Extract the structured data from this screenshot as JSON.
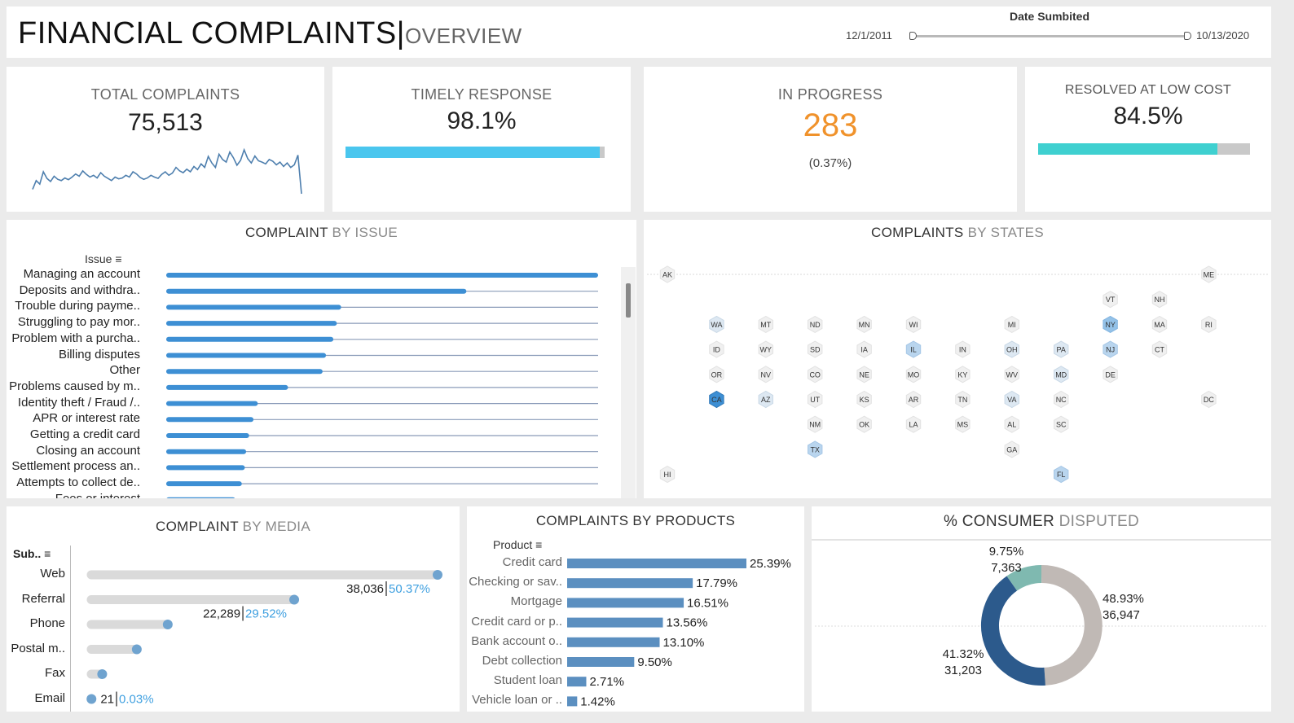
{
  "header": {
    "title": "FINANCIAL COMPLAINTS",
    "subtitle": "OVERVIEW",
    "date_filter": {
      "label": "Date Sumbited",
      "start": "12/1/2011",
      "end": "10/13/2020"
    }
  },
  "kpis": {
    "total": {
      "label": "TOTAL COMPLAINTS",
      "value": "75,513"
    },
    "timely": {
      "label": "TIMELY RESPONSE",
      "value": "98.1%",
      "fraction": 0.981
    },
    "in_progress": {
      "label": "IN PROGRESS",
      "value": "283",
      "sub": "(0.37%)"
    },
    "low_cost": {
      "label": "RESOLVED AT LOW COST",
      "value": "84.5%",
      "fraction": 0.845
    }
  },
  "colors": {
    "accent_blue": "#4ac6ee",
    "accent_teal": "#3fd0d0",
    "orange": "#f0922b",
    "bar_blue": "#3d8fd4",
    "product_blue": "#5b8fc0",
    "donut_dark": "#2c5a8c",
    "donut_teal": "#7fb9b0",
    "donut_grey": "#c0b9b5"
  },
  "issue_chart": {
    "title_dark": "COMPLAINT",
    "title_light": " BY ISSUE",
    "header": "Issue",
    "items": [
      {
        "label": "Managing an account",
        "value": 1.0
      },
      {
        "label": "Deposits and withdra..",
        "value": 0.695
      },
      {
        "label": "Trouble during payme..",
        "value": 0.405
      },
      {
        "label": "Struggling to pay mor..",
        "value": 0.395
      },
      {
        "label": "Problem with a purcha..",
        "value": 0.387
      },
      {
        "label": "Billing disputes",
        "value": 0.37
      },
      {
        "label": "Other",
        "value": 0.362
      },
      {
        "label": "Problems caused by m..",
        "value": 0.282
      },
      {
        "label": "Identity theft / Fraud /..",
        "value": 0.212
      },
      {
        "label": "APR or interest rate",
        "value": 0.202
      },
      {
        "label": "Getting a credit card",
        "value": 0.192
      },
      {
        "label": "Closing an account",
        "value": 0.185
      },
      {
        "label": "Settlement process an..",
        "value": 0.182
      },
      {
        "label": "Attempts to collect de..",
        "value": 0.175
      },
      {
        "label": "Fees or interest",
        "value": 0.16
      }
    ]
  },
  "states_map": {
    "title_dark": "COMPLAINTS",
    "title_light": " BY STATES",
    "states": [
      {
        "code": "AK",
        "col": 0,
        "row": 0,
        "level": 0
      },
      {
        "code": "ME",
        "col": 11,
        "row": 0,
        "level": 0
      },
      {
        "code": "VT",
        "col": 9,
        "row": 1,
        "level": 0
      },
      {
        "code": "NH",
        "col": 10,
        "row": 1,
        "level": 0
      },
      {
        "code": "WA",
        "col": 1,
        "row": 2,
        "level": 1
      },
      {
        "code": "MT",
        "col": 2,
        "row": 2,
        "level": 0
      },
      {
        "code": "ND",
        "col": 3,
        "row": 2,
        "level": 0
      },
      {
        "code": "MN",
        "col": 4,
        "row": 2,
        "level": 0
      },
      {
        "code": "WI",
        "col": 5,
        "row": 2,
        "level": 0
      },
      {
        "code": "MI",
        "col": 7,
        "row": 2,
        "level": 0
      },
      {
        "code": "NY",
        "col": 9,
        "row": 2,
        "level": 3
      },
      {
        "code": "MA",
        "col": 10,
        "row": 2,
        "level": 0
      },
      {
        "code": "RI",
        "col": 11,
        "row": 2,
        "level": 0
      },
      {
        "code": "ID",
        "col": 1,
        "row": 3,
        "level": 0
      },
      {
        "code": "WY",
        "col": 2,
        "row": 3,
        "level": 0
      },
      {
        "code": "SD",
        "col": 3,
        "row": 3,
        "level": 0
      },
      {
        "code": "IA",
        "col": 4,
        "row": 3,
        "level": 0
      },
      {
        "code": "IL",
        "col": 5,
        "row": 3,
        "level": 2
      },
      {
        "code": "IN",
        "col": 6,
        "row": 3,
        "level": 0
      },
      {
        "code": "OH",
        "col": 7,
        "row": 3,
        "level": 1
      },
      {
        "code": "PA",
        "col": 8,
        "row": 3,
        "level": 1
      },
      {
        "code": "NJ",
        "col": 9,
        "row": 3,
        "level": 2
      },
      {
        "code": "CT",
        "col": 10,
        "row": 3,
        "level": 0
      },
      {
        "code": "OR",
        "col": 1,
        "row": 4,
        "level": 0
      },
      {
        "code": "NV",
        "col": 2,
        "row": 4,
        "level": 0
      },
      {
        "code": "CO",
        "col": 3,
        "row": 4,
        "level": 0
      },
      {
        "code": "NE",
        "col": 4,
        "row": 4,
        "level": 0
      },
      {
        "code": "MO",
        "col": 5,
        "row": 4,
        "level": 0
      },
      {
        "code": "KY",
        "col": 6,
        "row": 4,
        "level": 0
      },
      {
        "code": "WV",
        "col": 7,
        "row": 4,
        "level": 0
      },
      {
        "code": "MD",
        "col": 8,
        "row": 4,
        "level": 1
      },
      {
        "code": "DE",
        "col": 9,
        "row": 4,
        "level": 0
      },
      {
        "code": "CA",
        "col": 1,
        "row": 5,
        "level": 4
      },
      {
        "code": "AZ",
        "col": 2,
        "row": 5,
        "level": 1
      },
      {
        "code": "UT",
        "col": 3,
        "row": 5,
        "level": 0
      },
      {
        "code": "KS",
        "col": 4,
        "row": 5,
        "level": 0
      },
      {
        "code": "AR",
        "col": 5,
        "row": 5,
        "level": 0
      },
      {
        "code": "TN",
        "col": 6,
        "row": 5,
        "level": 0
      },
      {
        "code": "VA",
        "col": 7,
        "row": 5,
        "level": 1
      },
      {
        "code": "NC",
        "col": 8,
        "row": 5,
        "level": 0
      },
      {
        "code": "DC",
        "col": 11,
        "row": 5,
        "level": 0
      },
      {
        "code": "NM",
        "col": 3,
        "row": 6,
        "level": 0
      },
      {
        "code": "OK",
        "col": 4,
        "row": 6,
        "level": 0
      },
      {
        "code": "LA",
        "col": 5,
        "row": 6,
        "level": 0
      },
      {
        "code": "MS",
        "col": 6,
        "row": 6,
        "level": 0
      },
      {
        "code": "AL",
        "col": 7,
        "row": 6,
        "level": 0
      },
      {
        "code": "SC",
        "col": 8,
        "row": 6,
        "level": 0
      },
      {
        "code": "TX",
        "col": 3,
        "row": 7,
        "level": 2
      },
      {
        "code": "GA",
        "col": 7,
        "row": 7,
        "level": 0
      },
      {
        "code": "HI",
        "col": 0,
        "row": 8,
        "level": 0
      },
      {
        "code": "FL",
        "col": 8,
        "row": 8,
        "level": 2
      }
    ]
  },
  "media_chart": {
    "title_dark": "COMPLAINT",
    "title_light": " BY MEDIA",
    "header": "Sub..",
    "items": [
      {
        "label": "Web",
        "value": 38036,
        "count": "38,036",
        "pct": "50.37%"
      },
      {
        "label": "Referral",
        "value": 22289,
        "count": "22,289",
        "pct": "29.52%"
      },
      {
        "label": "Phone",
        "value": 8400,
        "count": "",
        "pct": ""
      },
      {
        "label": "Postal m..",
        "value": 5000,
        "count": "",
        "pct": ""
      },
      {
        "label": "Fax",
        "value": 1200,
        "count": "",
        "pct": ""
      },
      {
        "label": "Email",
        "value": 21,
        "count": "21",
        "pct": "0.03%"
      }
    ]
  },
  "products_chart": {
    "title": "COMPLAINTS BY PRODUCTS",
    "header": "Product",
    "items": [
      {
        "label": "Credit card",
        "value": 25.39,
        "text": "25.39%"
      },
      {
        "label": "Checking or sav..",
        "value": 17.79,
        "text": "17.79%"
      },
      {
        "label": "Mortgage",
        "value": 16.51,
        "text": "16.51%"
      },
      {
        "label": "Credit card or p..",
        "value": 13.56,
        "text": "13.56%"
      },
      {
        "label": "Bank account o..",
        "value": 13.1,
        "text": "13.10%"
      },
      {
        "label": "Debt collection",
        "value": 9.5,
        "text": "9.50%"
      },
      {
        "label": "Student loan",
        "value": 2.71,
        "text": "2.71%"
      },
      {
        "label": "Vehicle loan or ..",
        "value": 1.42,
        "text": "1.42%"
      }
    ]
  },
  "disputed_chart": {
    "title_dark": "% CONSUMER",
    "title_light": " DISPUTED",
    "segments": [
      {
        "value": 48.93,
        "pct": "48.93%",
        "count": "36,947",
        "color": "#c0b9b5"
      },
      {
        "value": 41.32,
        "pct": "41.32%",
        "count": "31,203",
        "color": "#2c5a8c"
      },
      {
        "value": 9.75,
        "pct": "9.75%",
        "count": "7,363",
        "color": "#7fb9b0"
      }
    ]
  },
  "sparkline": [
    0.1,
    0.3,
    0.22,
    0.5,
    0.35,
    0.28,
    0.4,
    0.33,
    0.3,
    0.36,
    0.32,
    0.38,
    0.45,
    0.4,
    0.52,
    0.44,
    0.38,
    0.42,
    0.36,
    0.48,
    0.4,
    0.35,
    0.3,
    0.38,
    0.34,
    0.36,
    0.42,
    0.38,
    0.5,
    0.45,
    0.37,
    0.33,
    0.36,
    0.42,
    0.38,
    0.35,
    0.44,
    0.5,
    0.42,
    0.47,
    0.6,
    0.52,
    0.48,
    0.56,
    0.5,
    0.62,
    0.55,
    0.68,
    0.6,
    0.85,
    0.7,
    0.6,
    0.9,
    0.78,
    0.72,
    0.95,
    0.82,
    0.65,
    0.76,
    1.0,
    0.8,
    0.7,
    0.86,
    0.75,
    0.72,
    0.68,
    0.78,
    0.74,
    0.66,
    0.72,
    0.62,
    0.7,
    0.6,
    0.66,
    0.88,
    0.0
  ]
}
